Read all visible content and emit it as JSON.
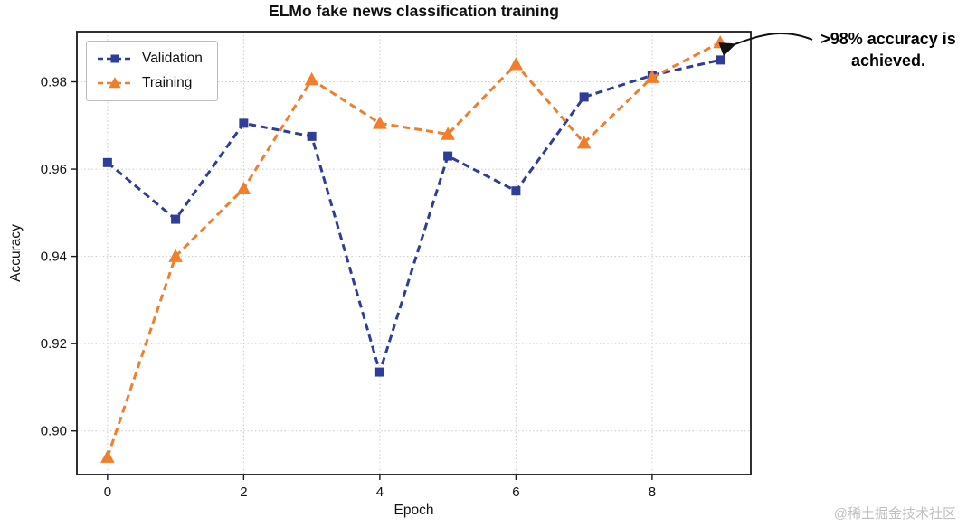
{
  "chart_data": {
    "type": "line",
    "title": "ELMo fake news classification training",
    "xlabel": "Epoch",
    "ylabel": "Accuracy",
    "x": [
      0,
      1,
      2,
      3,
      4,
      5,
      6,
      7,
      8,
      9
    ],
    "series": [
      {
        "name": "Validation",
        "color": "#2E3D98",
        "marker": "square",
        "dash": true,
        "values": [
          0.9615,
          0.9485,
          0.9705,
          0.9675,
          0.9135,
          0.963,
          0.955,
          0.9765,
          0.9815,
          0.985
        ]
      },
      {
        "name": "Training",
        "color": "#F07E2B",
        "marker": "triangle",
        "dash": true,
        "values": [
          0.894,
          0.94,
          0.9555,
          0.9805,
          0.9705,
          0.968,
          0.984,
          0.966,
          0.981,
          0.989
        ]
      }
    ],
    "xlim": [
      -0.45,
      9.45
    ],
    "ylim": [
      0.89,
      0.9915
    ],
    "xticks": [
      0,
      2,
      4,
      6,
      8
    ],
    "yticks": [
      0.9,
      0.92,
      0.94,
      0.96,
      0.98
    ],
    "grid": true,
    "grid_color": "#c9c9c9",
    "axis_color": "#1a1a1a",
    "legend_position": "upper left"
  },
  "annotation": {
    "text": ">98% accuracy is achieved."
  },
  "watermark": "@稀土掘金技术社区"
}
